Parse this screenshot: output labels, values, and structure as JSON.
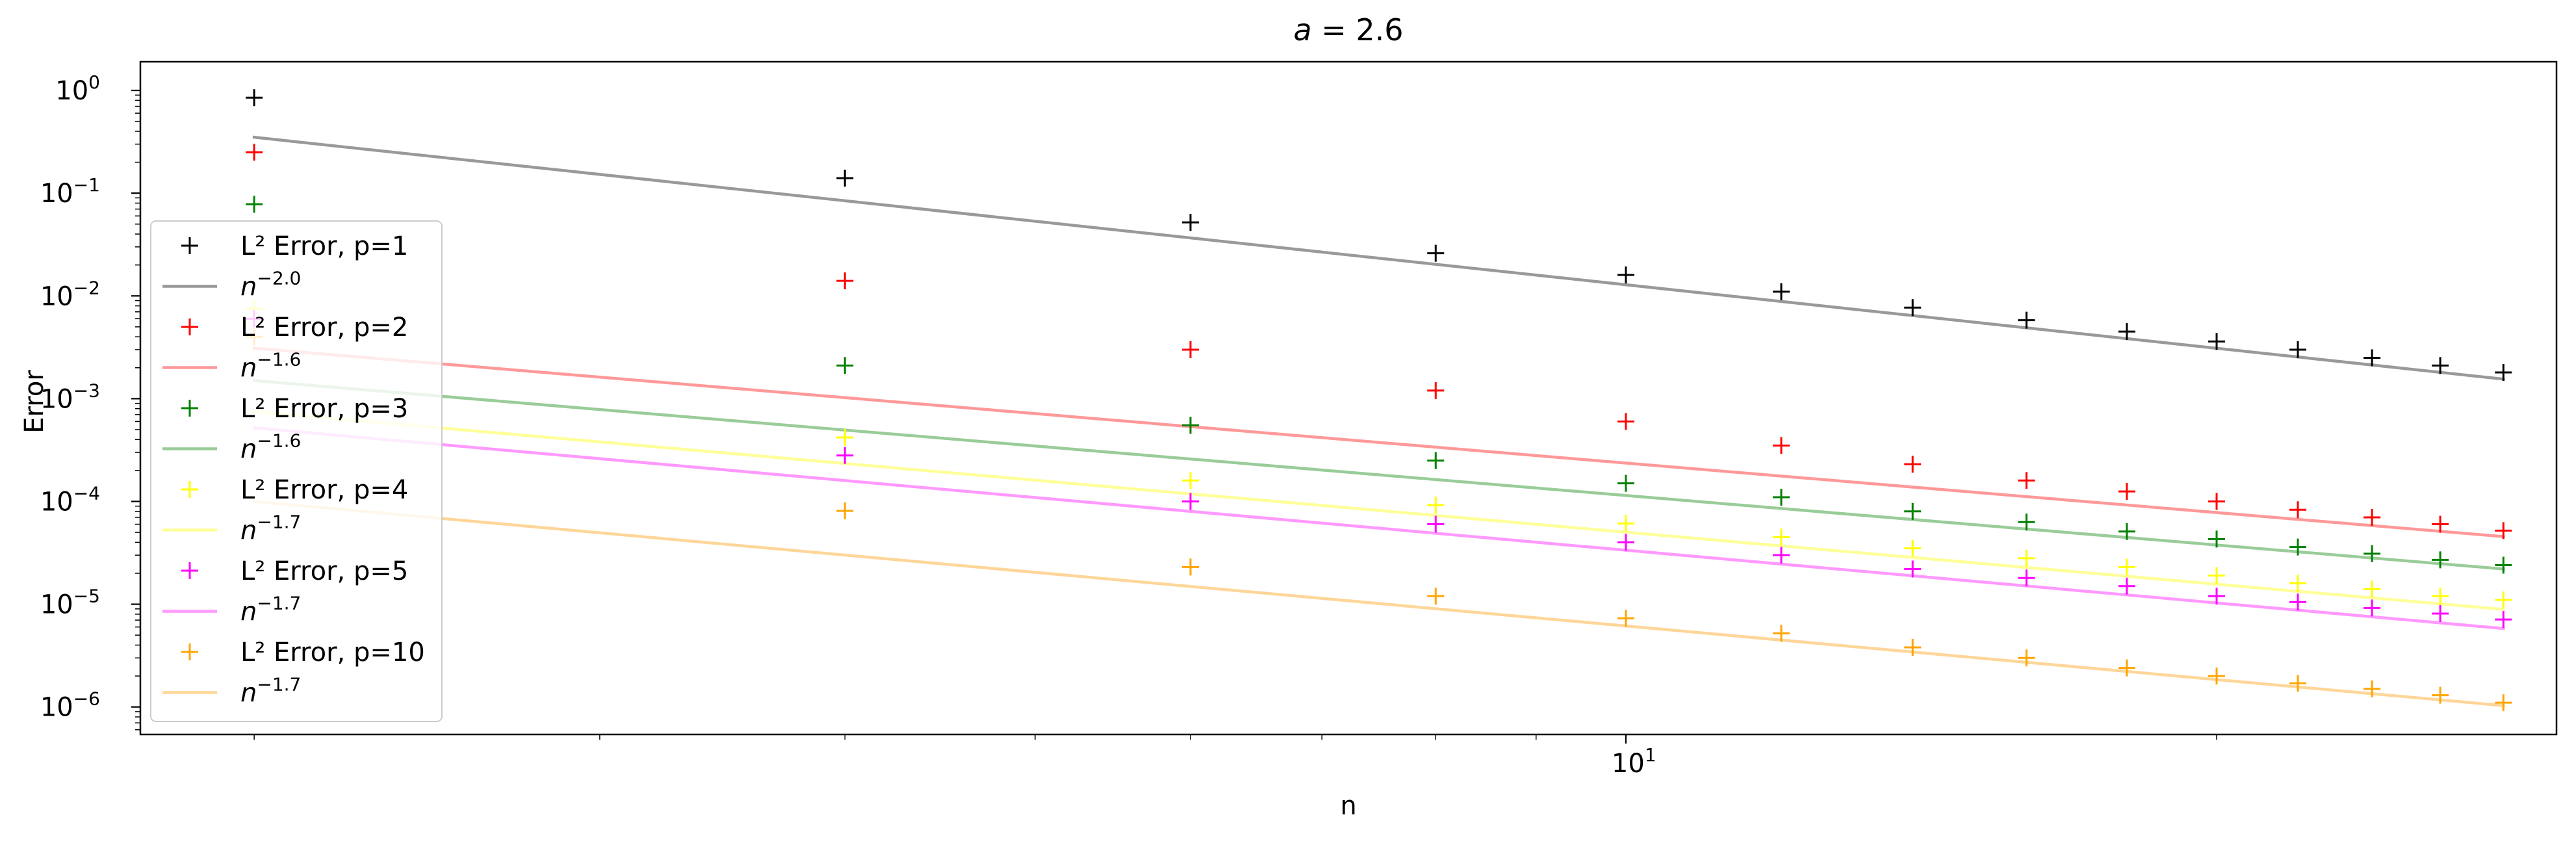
{
  "chart_data": {
    "type": "scatter",
    "title": "a = 2.6",
    "title_parts": {
      "italic": "a",
      "rest": " = 2.6"
    },
    "xlabel": "n",
    "ylabel": "Error",
    "xscale": "log",
    "yscale": "log",
    "xlim": [
      1.75,
      29.8
    ],
    "ylim": [
      5.4e-07,
      1.9
    ],
    "x_ticks": [
      {
        "value": 10,
        "base": "10",
        "exp": "1"
      }
    ],
    "y_ticks": [
      {
        "value": 1,
        "base": "10",
        "exp": "0"
      },
      {
        "value": 0.1,
        "base": "10",
        "exp": "−1"
      },
      {
        "value": 0.01,
        "base": "10",
        "exp": "−2"
      },
      {
        "value": 0.001,
        "base": "10",
        "exp": "−3"
      },
      {
        "value": 0.0001,
        "base": "10",
        "exp": "−4"
      },
      {
        "value": 1e-05,
        "base": "10",
        "exp": "−5"
      },
      {
        "value": 1e-06,
        "base": "10",
        "exp": "−6"
      }
    ],
    "grid": false,
    "legend_position": "left",
    "x": [
      2,
      4,
      6,
      8,
      10,
      12,
      14,
      16,
      18,
      20,
      22,
      24,
      26,
      28
    ],
    "series": [
      {
        "name": "L² Error, p=1",
        "color": "#000000",
        "marker": "plus",
        "values": [
          0.85,
          0.14,
          0.052,
          0.026,
          0.016,
          0.011,
          0.0077,
          0.0058,
          0.0045,
          0.0036,
          0.003,
          0.0025,
          0.0021,
          0.0018
        ]
      },
      {
        "name": "L² Error, p=2",
        "color": "#ff0000",
        "marker": "plus",
        "values": [
          0.25,
          0.014,
          0.003,
          0.0012,
          0.0006,
          0.00035,
          0.00023,
          0.00016,
          0.000125,
          0.0001,
          8.3e-05,
          7e-05,
          6e-05,
          5.2e-05
        ]
      },
      {
        "name": "L² Error, p=3",
        "color": "#008000",
        "marker": "plus",
        "values": [
          0.078,
          0.0021,
          0.00055,
          0.00025,
          0.00015,
          0.00011,
          8e-05,
          6.3e-05,
          5.1e-05,
          4.3e-05,
          3.6e-05,
          3.1e-05,
          2.7e-05,
          2.4e-05
        ]
      },
      {
        "name": "L² Error, p=4",
        "color": "#ffff00",
        "marker": "plus",
        "values": [
          0.0075,
          0.00042,
          0.00016,
          9.2e-05,
          6.1e-05,
          4.5e-05,
          3.5e-05,
          2.8e-05,
          2.3e-05,
          1.9e-05,
          1.6e-05,
          1.4e-05,
          1.2e-05,
          1.1e-05
        ]
      },
      {
        "name": "L² Error, p=5",
        "color": "#ff00ff",
        "marker": "plus",
        "values": [
          0.006,
          0.00028,
          0.0001,
          6e-05,
          4e-05,
          3e-05,
          2.2e-05,
          1.8e-05,
          1.5e-05,
          1.2e-05,
          1.05e-05,
          9.2e-06,
          8.1e-06,
          7.1e-06
        ]
      },
      {
        "name": "L² Error, p=10",
        "color": "#ffa500",
        "marker": "plus",
        "values": [
          0.004,
          8.1e-05,
          2.3e-05,
          1.2e-05,
          7.3e-06,
          5.2e-06,
          3.8e-06,
          3e-06,
          2.4e-06,
          2e-06,
          1.7e-06,
          1.5e-06,
          1.3e-06,
          1.1e-06
        ]
      }
    ],
    "fit_lines": [
      {
        "label_base": "n",
        "label_exp": "−2.0",
        "slope": -2.0,
        "color": "#999999",
        "x": [
          2,
          28
        ],
        "y": [
          0.35,
          0.00155
        ]
      },
      {
        "label_base": "n",
        "label_exp": "−1.6",
        "slope": -1.6,
        "color": "#ff9999",
        "x": [
          2,
          28
        ],
        "y": [
          0.0031,
          4.55e-05
        ]
      },
      {
        "label_base": "n",
        "label_exp": "−1.6",
        "slope": -1.6,
        "color": "#99cc99",
        "x": [
          2,
          28
        ],
        "y": [
          0.0015,
          2.2e-05
        ]
      },
      {
        "label_base": "n",
        "label_exp": "−1.7",
        "slope": -1.7,
        "color": "#ffff99",
        "x": [
          2,
          28
        ],
        "y": [
          0.00075,
          8.9e-06
        ]
      },
      {
        "label_base": "n",
        "label_exp": "−1.7",
        "slope": -1.7,
        "color": "#ff99ff",
        "x": [
          2,
          28
        ],
        "y": [
          0.00052,
          5.8e-06
        ]
      },
      {
        "label_base": "n",
        "label_exp": "−1.7",
        "slope": -1.7,
        "color": "#ffd699",
        "x": [
          2,
          28
        ],
        "y": [
          0.0001,
          1.03e-06
        ]
      }
    ]
  }
}
